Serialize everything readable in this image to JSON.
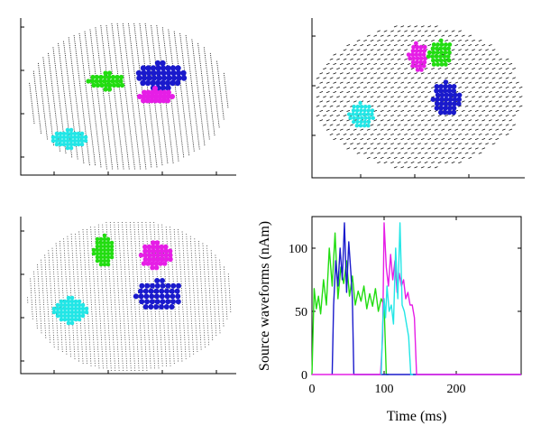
{
  "colors": {
    "green": "#22dd11",
    "blue": "#1a1acc",
    "magenta": "#e61ee6",
    "cyan": "#22e6e6",
    "grid": "#333333"
  },
  "panels": [
    {
      "name": "top-left",
      "kind": "brain-view",
      "style": "vertical-strokes"
    },
    {
      "name": "top-right",
      "kind": "brain-view",
      "style": "dash-field"
    },
    {
      "name": "bottom-left",
      "kind": "brain-view",
      "style": "dense-grid"
    }
  ],
  "chart_data": {
    "type": "line",
    "title": "",
    "xlabel": "Time (ms)",
    "ylabel": "Source waveforms (nAm)",
    "xlim": [
      0,
      290
    ],
    "ylim": [
      0,
      125
    ],
    "xticks": [
      0,
      100,
      200
    ],
    "yticks": [
      0,
      50,
      100
    ],
    "grid": false,
    "series": [
      {
        "color": "green",
        "x": [
          0,
          3,
          6,
          9,
          12,
          16,
          20,
          24,
          28,
          32,
          36,
          40,
          44,
          48,
          52,
          56,
          60,
          64,
          68,
          72,
          76,
          80,
          84,
          88,
          92,
          96,
          100,
          103,
          106
        ],
        "y": [
          0,
          68,
          52,
          62,
          48,
          75,
          55,
          100,
          70,
          112,
          60,
          85,
          72,
          90,
          62,
          78,
          55,
          66,
          58,
          70,
          52,
          64,
          54,
          68,
          50,
          60,
          55,
          0,
          0
        ]
      },
      {
        "color": "blue",
        "x": [
          28,
          30,
          33,
          36,
          39,
          42,
          45,
          48,
          51,
          54,
          56,
          58,
          60,
          290
        ],
        "y": [
          0,
          55,
          90,
          70,
          100,
          75,
          120,
          65,
          105,
          80,
          60,
          0,
          0,
          0
        ]
      },
      {
        "color": "magenta",
        "x": [
          0,
          95,
          98,
          100,
          103,
          106,
          109,
          112,
          115,
          118,
          121,
          124,
          127,
          130,
          133,
          136,
          139,
          142,
          145,
          150,
          290
        ],
        "y": [
          0,
          0,
          30,
          120,
          85,
          70,
          95,
          75,
          90,
          65,
          80,
          70,
          75,
          60,
          65,
          55,
          55,
          45,
          0,
          0,
          0
        ]
      },
      {
        "color": "cyan",
        "x": [
          96,
          98,
          100,
          102,
          104,
          107,
          110,
          113,
          116,
          119,
          122,
          125,
          128,
          131,
          134,
          137,
          140
        ],
        "y": [
          0,
          40,
          60,
          45,
          70,
          50,
          55,
          40,
          100,
          60,
          120,
          55,
          50,
          40,
          30,
          0,
          0
        ]
      }
    ]
  }
}
